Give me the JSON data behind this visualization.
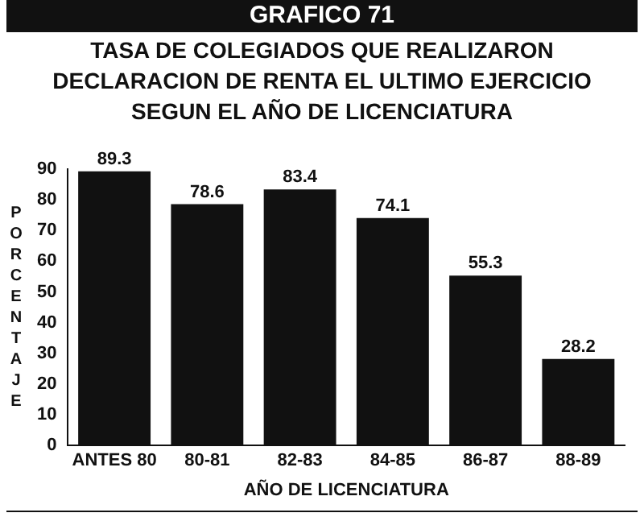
{
  "chart_data": {
    "type": "bar",
    "title": "TASA DE COLEGIADOS QUE REALIZARON DECLARACION DE RENTA EL ULTIMO EJERCICIO SEGUN EL AÑO DE LICENCIATURA",
    "annotations": [
      "GRAFICO 71"
    ],
    "xlabel": "AÑO DE LICENCIATURA",
    "ylabel": "PORCENTAJE",
    "categories": [
      "ANTES 80",
      "80-81",
      "82-83",
      "84-85",
      "86-87",
      "88-89"
    ],
    "values": [
      89.3,
      78.6,
      83.4,
      74.1,
      55.3,
      28.2
    ],
    "color": "#111111",
    "ylim": [
      0,
      90
    ],
    "yticks": [
      0,
      10,
      20,
      30,
      40,
      50,
      60,
      70,
      80,
      90
    ],
    "grid": false,
    "legend": false,
    "data_labels": true
  }
}
